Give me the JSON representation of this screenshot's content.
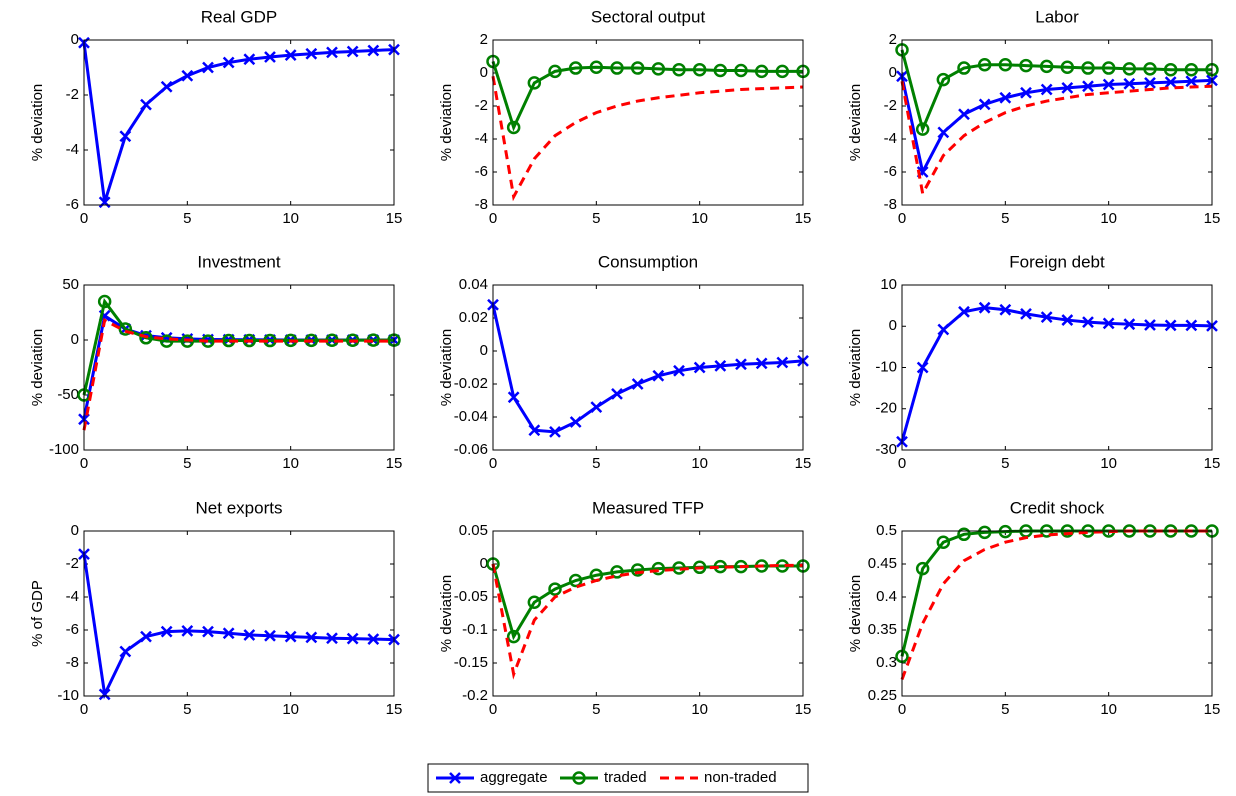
{
  "chart_data": [
    {
      "type": "line",
      "title": "Real GDP",
      "y_label": "% deviation",
      "x": [
        0,
        1,
        2,
        3,
        4,
        5,
        6,
        7,
        8,
        9,
        10,
        11,
        12,
        13,
        14,
        15
      ],
      "xlim": [
        0,
        15
      ],
      "xticks": [
        0,
        5,
        10,
        15
      ],
      "ylim": [
        -6,
        0
      ],
      "yticks": [
        -6,
        -4,
        -2,
        0
      ],
      "series": [
        {
          "name": "aggregate",
          "color": "#0000ff",
          "marker": "x",
          "linestyle": "solid",
          "values": [
            -0.1,
            -5.9,
            -3.5,
            -2.35,
            -1.7,
            -1.3,
            -1.0,
            -0.82,
            -0.7,
            -0.62,
            -0.55,
            -0.5,
            -0.45,
            -0.42,
            -0.38,
            -0.35
          ]
        }
      ]
    },
    {
      "type": "line",
      "title": "Sectoral output",
      "y_label": "% deviation",
      "x": [
        0,
        1,
        2,
        3,
        4,
        5,
        6,
        7,
        8,
        9,
        10,
        11,
        12,
        13,
        14,
        15
      ],
      "xlim": [
        0,
        15
      ],
      "xticks": [
        0,
        5,
        10,
        15
      ],
      "ylim": [
        -8,
        2
      ],
      "yticks": [
        -8,
        -6,
        -4,
        -2,
        0,
        2
      ],
      "series": [
        {
          "name": "traded",
          "color": "#008000",
          "marker": "o",
          "linestyle": "solid",
          "values": [
            0.7,
            -3.3,
            -0.6,
            0.1,
            0.3,
            0.35,
            0.3,
            0.3,
            0.25,
            0.2,
            0.2,
            0.15,
            0.15,
            0.1,
            0.1,
            0.1
          ]
        },
        {
          "name": "non-traded",
          "color": "#ff0000",
          "marker": "none",
          "linestyle": "dashed",
          "values": [
            -0.2,
            -7.5,
            -5.2,
            -3.8,
            -3.0,
            -2.4,
            -2.0,
            -1.7,
            -1.5,
            -1.35,
            -1.2,
            -1.1,
            -1.0,
            -0.95,
            -0.9,
            -0.85
          ]
        }
      ]
    },
    {
      "type": "line",
      "title": "Labor",
      "y_label": "% deviation",
      "x": [
        0,
        1,
        2,
        3,
        4,
        5,
        6,
        7,
        8,
        9,
        10,
        11,
        12,
        13,
        14,
        15
      ],
      "xlim": [
        0,
        15
      ],
      "xticks": [
        0,
        5,
        10,
        15
      ],
      "ylim": [
        -8,
        2
      ],
      "yticks": [
        -8,
        -6,
        -4,
        -2,
        0,
        2
      ],
      "series": [
        {
          "name": "aggregate",
          "color": "#0000ff",
          "marker": "x",
          "linestyle": "solid",
          "values": [
            -0.2,
            -6.0,
            -3.6,
            -2.5,
            -1.9,
            -1.5,
            -1.2,
            -1.0,
            -0.9,
            -0.8,
            -0.7,
            -0.65,
            -0.6,
            -0.55,
            -0.5,
            -0.45
          ]
        },
        {
          "name": "traded",
          "color": "#008000",
          "marker": "o",
          "linestyle": "solid",
          "values": [
            1.4,
            -3.4,
            -0.4,
            0.3,
            0.5,
            0.5,
            0.45,
            0.4,
            0.35,
            0.3,
            0.3,
            0.25,
            0.25,
            0.2,
            0.2,
            0.2
          ]
        },
        {
          "name": "non-traded",
          "color": "#ff0000",
          "marker": "none",
          "linestyle": "dashed",
          "values": [
            -0.5,
            -7.3,
            -5.0,
            -3.8,
            -3.0,
            -2.4,
            -2.0,
            -1.7,
            -1.5,
            -1.3,
            -1.2,
            -1.1,
            -1.0,
            -0.9,
            -0.85,
            -0.8
          ]
        }
      ]
    },
    {
      "type": "line",
      "title": "Investment",
      "y_label": "% deviation",
      "x": [
        0,
        1,
        2,
        3,
        4,
        5,
        6,
        7,
        8,
        9,
        10,
        11,
        12,
        13,
        14,
        15
      ],
      "xlim": [
        0,
        15
      ],
      "xticks": [
        0,
        5,
        10,
        15
      ],
      "ylim": [
        -100,
        50
      ],
      "yticks": [
        -100,
        -50,
        0,
        50
      ],
      "series": [
        {
          "name": "aggregate",
          "color": "#0000ff",
          "marker": "x",
          "linestyle": "solid",
          "values": [
            -72,
            22,
            10,
            4,
            2,
            1,
            0.5,
            0.3,
            0.2,
            0.1,
            0,
            0,
            0,
            0,
            0,
            0
          ]
        },
        {
          "name": "traded",
          "color": "#008000",
          "marker": "o",
          "linestyle": "solid",
          "values": [
            -50,
            35,
            10,
            2,
            -1,
            -1,
            -1,
            -0.5,
            -0.5,
            -0.5,
            -0.3,
            -0.3,
            -0.2,
            -0.2,
            -0.1,
            -0.1
          ]
        },
        {
          "name": "non-traded",
          "color": "#ff0000",
          "marker": "none",
          "linestyle": "dashed",
          "values": [
            -82,
            18,
            8,
            3,
            1,
            0,
            -1,
            -1,
            -1,
            -1,
            -1,
            -1,
            -1,
            -1,
            -1,
            -1
          ]
        }
      ]
    },
    {
      "type": "line",
      "title": "Consumption",
      "y_label": "% deviation",
      "x": [
        0,
        1,
        2,
        3,
        4,
        5,
        6,
        7,
        8,
        9,
        10,
        11,
        12,
        13,
        14,
        15
      ],
      "xlim": [
        0,
        15
      ],
      "xticks": [
        0,
        5,
        10,
        15
      ],
      "ylim": [
        -0.06,
        0.04
      ],
      "yticks": [
        -0.06,
        -0.04,
        -0.02,
        0,
        0.02,
        0.04
      ],
      "series": [
        {
          "name": "aggregate",
          "color": "#0000ff",
          "marker": "x",
          "linestyle": "solid",
          "values": [
            0.028,
            -0.028,
            -0.048,
            -0.049,
            -0.043,
            -0.034,
            -0.026,
            -0.02,
            -0.015,
            -0.012,
            -0.01,
            -0.009,
            -0.008,
            -0.0075,
            -0.007,
            -0.006
          ]
        }
      ]
    },
    {
      "type": "line",
      "title": "Foreign debt",
      "y_label": "% deviation",
      "x": [
        0,
        1,
        2,
        3,
        4,
        5,
        6,
        7,
        8,
        9,
        10,
        11,
        12,
        13,
        14,
        15
      ],
      "xlim": [
        0,
        15
      ],
      "xticks": [
        0,
        5,
        10,
        15
      ],
      "ylim": [
        -30,
        10
      ],
      "yticks": [
        -30,
        -20,
        -10,
        0,
        10
      ],
      "series": [
        {
          "name": "aggregate",
          "color": "#0000ff",
          "marker": "x",
          "linestyle": "solid",
          "values": [
            -28,
            -10,
            -0.8,
            3.5,
            4.5,
            4.0,
            3.0,
            2.2,
            1.5,
            1.0,
            0.7,
            0.5,
            0.3,
            0.2,
            0.2,
            0.1
          ]
        }
      ]
    },
    {
      "type": "line",
      "title": "Net exports",
      "y_label": "% of GDP",
      "x": [
        0,
        1,
        2,
        3,
        4,
        5,
        6,
        7,
        8,
        9,
        10,
        11,
        12,
        13,
        14,
        15
      ],
      "xlim": [
        0,
        15
      ],
      "xticks": [
        0,
        5,
        10,
        15
      ],
      "ylim": [
        -10,
        0
      ],
      "yticks": [
        -10,
        -8,
        -6,
        -4,
        -2,
        0
      ],
      "series": [
        {
          "name": "aggregate",
          "color": "#0000ff",
          "marker": "x",
          "linestyle": "solid",
          "values": [
            -1.4,
            -9.9,
            -7.3,
            -6.4,
            -6.1,
            -6.05,
            -6.1,
            -6.2,
            -6.3,
            -6.35,
            -6.4,
            -6.45,
            -6.5,
            -6.52,
            -6.55,
            -6.58
          ]
        }
      ]
    },
    {
      "type": "line",
      "title": "Measured TFP",
      "y_label": "% deviation",
      "x": [
        0,
        1,
        2,
        3,
        4,
        5,
        6,
        7,
        8,
        9,
        10,
        11,
        12,
        13,
        14,
        15
      ],
      "xlim": [
        0,
        15
      ],
      "xticks": [
        0,
        5,
        10,
        15
      ],
      "ylim": [
        -0.2,
        0.05
      ],
      "yticks": [
        -0.2,
        -0.15,
        -0.1,
        -0.05,
        0,
        0.05
      ],
      "series": [
        {
          "name": "traded",
          "color": "#008000",
          "marker": "o",
          "linestyle": "solid",
          "values": [
            0,
            -0.11,
            -0.058,
            -0.038,
            -0.025,
            -0.017,
            -0.012,
            -0.009,
            -0.007,
            -0.006,
            -0.005,
            -0.004,
            -0.004,
            -0.003,
            -0.003,
            -0.003
          ]
        },
        {
          "name": "non-traded",
          "color": "#ff0000",
          "marker": "none",
          "linestyle": "dashed",
          "values": [
            0,
            -0.167,
            -0.085,
            -0.05,
            -0.035,
            -0.025,
            -0.018,
            -0.013,
            -0.01,
            -0.008,
            -0.006,
            -0.005,
            -0.004,
            -0.003,
            -0.002,
            -0.002
          ]
        }
      ]
    },
    {
      "type": "line",
      "title": "Credit shock",
      "y_label": "% deviation",
      "x": [
        0,
        1,
        2,
        3,
        4,
        5,
        6,
        7,
        8,
        9,
        10,
        11,
        12,
        13,
        14,
        15
      ],
      "xlim": [
        0,
        15
      ],
      "xticks": [
        0,
        5,
        10,
        15
      ],
      "ylim": [
        0.25,
        0.5
      ],
      "yticks": [
        0.25,
        0.3,
        0.35,
        0.4,
        0.45,
        0.5
      ],
      "series": [
        {
          "name": "traded",
          "color": "#008000",
          "marker": "o",
          "linestyle": "solid",
          "values": [
            0.31,
            0.443,
            0.483,
            0.495,
            0.498,
            0.499,
            0.5,
            0.5,
            0.5,
            0.5,
            0.5,
            0.5,
            0.5,
            0.5,
            0.5,
            0.5
          ]
        },
        {
          "name": "non-traded",
          "color": "#ff0000",
          "marker": "none",
          "linestyle": "dashed",
          "values": [
            0.275,
            0.36,
            0.42,
            0.455,
            0.472,
            0.483,
            0.49,
            0.494,
            0.496,
            0.498,
            0.499,
            0.5,
            0.5,
            0.5,
            0.5,
            0.5
          ]
        }
      ]
    }
  ]
}
